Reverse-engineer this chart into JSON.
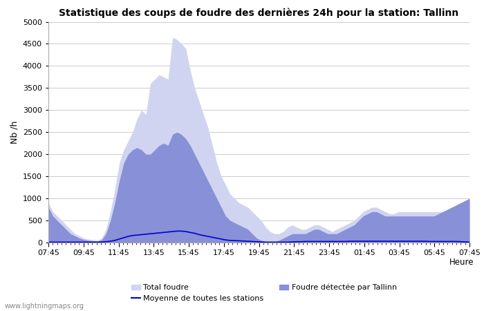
{
  "title": "Statistique des coups de foudre des dernières 24h pour la station: Tallinn",
  "ylabel": "Nb /h",
  "xlabel": "Heure",
  "ylim": [
    0,
    5000
  ],
  "yticks": [
    0,
    500,
    1000,
    1500,
    2000,
    2500,
    3000,
    3500,
    4000,
    4500,
    5000
  ],
  "x_labels": [
    "07:45",
    "09:45",
    "11:45",
    "13:45",
    "15:45",
    "17:45",
    "19:45",
    "21:45",
    "23:45",
    "01:45",
    "03:45",
    "05:45",
    "07:45"
  ],
  "watermark": "www.lightningmaps.org",
  "color_total": "#d0d4f0",
  "color_tallinn": "#8890d8",
  "color_moyenne": "#0000cc",
  "total_foudre": [
    900,
    700,
    600,
    500,
    400,
    300,
    200,
    150,
    100,
    80,
    60,
    50,
    100,
    300,
    700,
    1200,
    1800,
    2100,
    2300,
    2500,
    2800,
    3000,
    2900,
    3600,
    3700,
    3800,
    3750,
    3700,
    4650,
    4600,
    4500,
    4400,
    3900,
    3500,
    3200,
    2900,
    2600,
    2200,
    1800,
    1500,
    1300,
    1100,
    1000,
    900,
    850,
    800,
    700,
    600,
    500,
    350,
    250,
    200,
    200,
    250,
    350,
    400,
    350,
    300,
    300,
    350,
    400,
    400,
    350,
    300,
    250,
    300,
    350,
    400,
    450,
    500,
    600,
    700,
    750,
    800,
    800,
    750,
    700,
    650,
    650,
    700,
    700,
    700,
    700,
    700,
    700,
    700,
    700,
    700,
    700,
    700,
    700,
    700,
    750,
    800,
    900,
    1000
  ],
  "tallinn_foudre": [
    800,
    600,
    500,
    400,
    300,
    200,
    150,
    100,
    70,
    50,
    40,
    30,
    60,
    200,
    500,
    900,
    1400,
    1800,
    2000,
    2100,
    2150,
    2100,
    2000,
    2000,
    2100,
    2200,
    2250,
    2200,
    2450,
    2500,
    2450,
    2350,
    2200,
    2000,
    1800,
    1600,
    1400,
    1200,
    1000,
    800,
    600,
    500,
    450,
    400,
    350,
    300,
    200,
    100,
    50,
    20,
    10,
    10,
    50,
    100,
    150,
    200,
    200,
    200,
    200,
    250,
    300,
    300,
    250,
    200,
    200,
    200,
    250,
    300,
    350,
    400,
    500,
    600,
    650,
    700,
    700,
    650,
    600,
    600,
    600,
    600,
    600,
    600,
    600,
    600,
    600,
    600,
    600,
    600,
    650,
    700,
    750,
    800,
    850,
    900,
    950,
    1000
  ],
  "moyenne": [
    10,
    10,
    10,
    10,
    10,
    10,
    10,
    10,
    10,
    10,
    10,
    10,
    15,
    20,
    30,
    50,
    80,
    110,
    140,
    160,
    170,
    180,
    190,
    200,
    210,
    220,
    230,
    240,
    250,
    260,
    260,
    250,
    230,
    210,
    180,
    160,
    140,
    120,
    100,
    80,
    60,
    50,
    45,
    40,
    35,
    30,
    25,
    20,
    15,
    10,
    10,
    10,
    10,
    10,
    10,
    15,
    20,
    20,
    25,
    25,
    25,
    25,
    25,
    25,
    25,
    25,
    25,
    25,
    30,
    30,
    30,
    30,
    30,
    30,
    30,
    30,
    30,
    30,
    30,
    30,
    30,
    30,
    30,
    30,
    30,
    30,
    25,
    25,
    25,
    25,
    25,
    25,
    25,
    20,
    15,
    10
  ]
}
